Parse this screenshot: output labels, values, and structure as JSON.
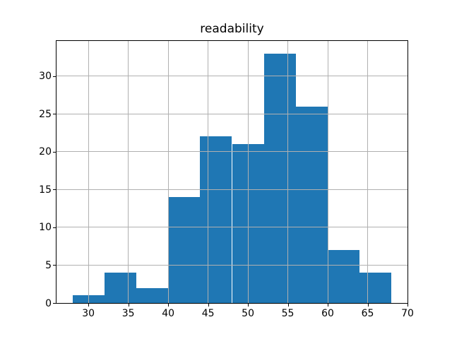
{
  "chart_data": {
    "type": "bar",
    "subtype": "histogram",
    "title": "readability",
    "bin_edges": [
      28,
      32,
      36,
      40,
      44,
      48,
      52,
      56,
      60,
      64,
      68
    ],
    "counts": [
      1,
      4,
      2,
      14,
      22,
      21,
      33,
      26,
      7,
      4
    ],
    "xlabel": "",
    "ylabel": "",
    "x_ticks": [
      30,
      35,
      40,
      45,
      50,
      55,
      60,
      65,
      70
    ],
    "y_ticks": [
      0,
      5,
      10,
      15,
      20,
      25,
      30
    ],
    "xlim": [
      26,
      70
    ],
    "ylim": [
      0,
      34.65
    ],
    "bar_color": "#1f77b4",
    "grid_color": "#b0b0b0",
    "spine_color": "#000000",
    "text_color": "#000000",
    "background_color": "#ffffff",
    "grid": "on",
    "grid_above_bars": true,
    "legend_position": "none"
  }
}
